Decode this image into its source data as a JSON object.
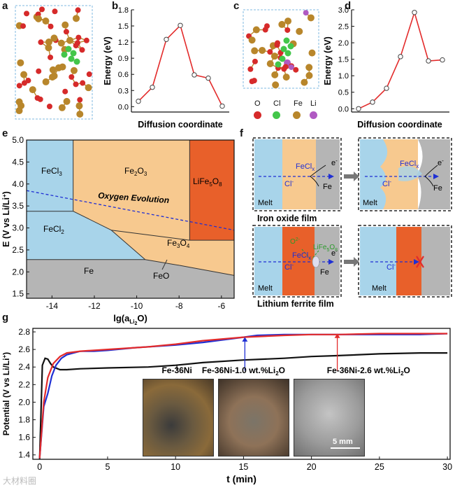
{
  "panels": {
    "a": "a",
    "b": "b",
    "c": "c",
    "d": "d",
    "e": "e",
    "f": "f",
    "g": "g"
  },
  "legend": [
    {
      "label": "O",
      "color": "#d62a2a"
    },
    {
      "label": "Cl",
      "color": "#43c64a"
    },
    {
      "label": "Fe",
      "color": "#b8862b"
    },
    {
      "label": "Li",
      "color": "#b05ac2"
    }
  ],
  "panel_f": {
    "melt": "Melt",
    "fecl": "FeCl",
    "fecl_sub": "x",
    "cl": "Cl",
    "cl_sup": "-",
    "fe": "Fe",
    "e": "e",
    "e_sup": "-",
    "o2": "O",
    "o2_sup": "2-",
    "lifeo": "LiFe",
    "lifeo_s1": "5",
    "lifeo_o": "O",
    "lifeo_s2": "8",
    "caption_top": "Iron oxide film",
    "caption_bottom": "Lithium ferrite film"
  },
  "panel_g_labels": {
    "fe36ni": "Fe-36Ni",
    "fe36ni_10": "Fe-36Ni-1.0 wt.%Li",
    "fe36ni_26": "Fe-36Ni-2.6 wt.%Li",
    "li2o_sub": "2",
    "li2o_o": "O",
    "scale": "5 mm"
  },
  "watermark": "大材料圈",
  "colors": {
    "red": "#e32b2b",
    "blue": "#1f2fd4",
    "black": "#111111",
    "fecl3": "#a8d4ea",
    "fe2o3": "#f7c98f",
    "lifeo": "#e8602a",
    "fe": "#b5b5b5"
  },
  "chart_data": [
    {
      "id": "b",
      "type": "line",
      "x": [
        1,
        2,
        3,
        4,
        5,
        6,
        7
      ],
      "values": [
        0.1,
        0.36,
        1.25,
        1.51,
        0.59,
        0.53,
        0.01
      ],
      "xlabel": "Diffusion coordinate",
      "ylabel": "Energy (eV)",
      "ylim": [
        -0.1,
        1.8
      ],
      "yticks": [
        "0.0",
        "0.3",
        "0.6",
        "0.9",
        "1.2",
        "1.5",
        "1.8"
      ]
    },
    {
      "id": "d",
      "type": "line",
      "x": [
        1,
        2,
        3,
        4,
        5,
        6,
        7
      ],
      "values": [
        0.0,
        0.2,
        0.62,
        1.58,
        2.92,
        1.45,
        1.48
      ],
      "xlabel": "Diffusion coordinate",
      "ylabel": "Energy (eV)",
      "ylim": [
        -0.1,
        3.0
      ],
      "yticks": [
        "0.0",
        "0.5",
        "1.0",
        "1.5",
        "2.0",
        "2.5",
        "3.0"
      ]
    },
    {
      "id": "e",
      "type": "area",
      "xlabel": "lg(a",
      "xlabel_sub": "Li",
      "xlabel_sub2": "2",
      "xlabel_end": "O)",
      "ylabel": "E (V vs Li/Li",
      "ylabel_sup": "+",
      "ylabel_end": ")",
      "xlim": [
        -15.2,
        -5.4
      ],
      "ylim": [
        1.4,
        5.0
      ],
      "xticks": [
        "-14",
        "-12",
        "-10",
        "-8",
        "-6"
      ],
      "yticks": [
        "1.5",
        "2.0",
        "2.5",
        "3.0",
        "3.5",
        "4.0",
        "4.5",
        "5.0"
      ],
      "regions": [
        {
          "label": "FeCl",
          "sub": "3"
        },
        {
          "label": "Fe",
          "sub": "2",
          "label_end": "O",
          "sub2": "3"
        },
        {
          "label": "LiFe",
          "sub": "5",
          "label_end": "O",
          "sub2": "8"
        },
        {
          "label": "FeCl",
          "sub": "2"
        },
        {
          "label": "Fe",
          "sub": "3",
          "label_end": "O",
          "sub2": "4"
        },
        {
          "label": "Fe"
        },
        {
          "label": "FeO"
        }
      ],
      "annotation": "Oxygen Evolution"
    },
    {
      "id": "g",
      "type": "line",
      "xlabel": "t (min)",
      "ylabel": "Potential (V vs Li/Li",
      "ylabel_sup": "+",
      "ylabel_end": ")",
      "xlim": [
        -0.5,
        30.2
      ],
      "ylim": [
        1.35,
        2.84
      ],
      "xticks": [
        "0",
        "5",
        "10",
        "15",
        "20",
        "25",
        "30"
      ],
      "yticks": [
        "1.4",
        "1.6",
        "1.8",
        "2.0",
        "2.2",
        "2.4",
        "2.6",
        "2.8"
      ],
      "series": [
        {
          "name": "Fe-36Ni",
          "x": [
            0,
            0.2,
            0.4,
            0.6,
            0.8,
            1.0,
            1.5,
            2,
            3,
            5,
            8,
            10,
            12,
            15,
            18,
            20,
            22,
            25,
            28,
            30
          ],
          "values": [
            1.35,
            2.42,
            2.5,
            2.49,
            2.44,
            2.4,
            2.37,
            2.37,
            2.38,
            2.39,
            2.4,
            2.42,
            2.45,
            2.48,
            2.5,
            2.52,
            2.53,
            2.55,
            2.56,
            2.56
          ]
        },
        {
          "name": "Fe-36Ni-1.0 wt.%Li2O",
          "x": [
            0,
            0.3,
            0.6,
            0.9,
            1.2,
            1.6,
            2,
            2.5,
            3,
            4,
            5,
            7,
            10,
            12,
            14,
            15,
            16,
            18,
            20,
            22,
            25,
            28,
            30
          ],
          "values": [
            1.36,
            1.95,
            2.1,
            2.3,
            2.42,
            2.5,
            2.54,
            2.56,
            2.58,
            2.58,
            2.59,
            2.62,
            2.65,
            2.68,
            2.72,
            2.74,
            2.76,
            2.77,
            2.77,
            2.77,
            2.77,
            2.77,
            2.78
          ]
        },
        {
          "name": "Fe-36Ni-2.6 wt.%Li2O",
          "x": [
            0,
            0.3,
            0.6,
            1.0,
            1.5,
            2,
            2.5,
            3,
            5,
            8,
            10,
            12,
            15,
            18,
            20,
            22,
            25,
            28,
            30
          ],
          "values": [
            1.36,
            2.0,
            2.28,
            2.44,
            2.52,
            2.56,
            2.57,
            2.58,
            2.6,
            2.63,
            2.66,
            2.7,
            2.74,
            2.76,
            2.77,
            2.77,
            2.78,
            2.78,
            2.78
          ]
        }
      ]
    }
  ]
}
